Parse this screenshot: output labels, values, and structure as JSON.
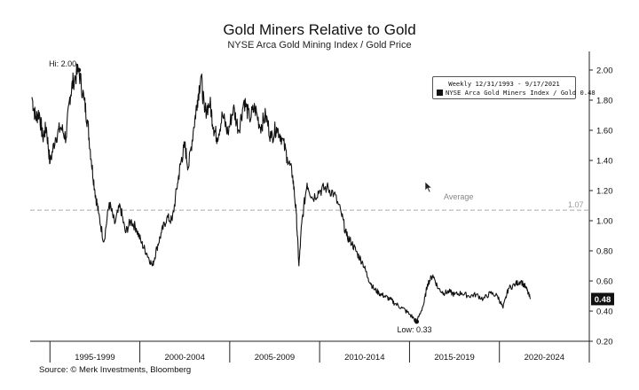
{
  "header": {
    "title": "Gold Miners Relative to Gold",
    "subtitle": "NYSE Arca Gold Mining Index / Gold Price"
  },
  "footer": {
    "source": "Source: © Merk Investments, Bloomberg"
  },
  "legend": {
    "range": "Weekly 12/31/1993 - 9/17/2021",
    "series": "NYSE Arca Gold Miners Index / Gold 0.48"
  },
  "annotations": {
    "high": "Hi: 2.00",
    "low": "Low: 0.33",
    "average_label": "Average",
    "average_value": "1.07",
    "last_value": "0.48"
  },
  "chart_data": {
    "type": "line",
    "title": "Gold Miners Relative to Gold",
    "subtitle": "NYSE Arca Gold Mining Index / Gold Price",
    "xlabel": "",
    "ylabel": "",
    "x_range": [
      1993.9,
      2025.0
    ],
    "ylim": [
      0.2,
      2.1
    ],
    "y_ticks": [
      "0.20",
      "0.40",
      "0.60",
      "0.80",
      "1.00",
      "1.20",
      "1.40",
      "1.60",
      "1.80",
      "2.00"
    ],
    "x_period_labels": [
      "1995-1999",
      "2000-2004",
      "2005-2009",
      "2010-2014",
      "2015-2019",
      "2020-2024"
    ],
    "x_period_bounds": [
      1995,
      2000,
      2005,
      2010,
      2015,
      2020,
      2025
    ],
    "average": 1.07,
    "grid": false,
    "legend_position": "top-right",
    "series": [
      {
        "name": "NYSE Arca Gold Miners Index / Gold",
        "color": "#111111",
        "x": [
          1994.0,
          1994.2,
          1994.4,
          1994.6,
          1994.8,
          1995.0,
          1995.3,
          1995.6,
          1995.9,
          1996.1,
          1996.3,
          1996.6,
          1996.9,
          1997.1,
          1997.3,
          1997.5,
          1997.7,
          1998.0,
          1998.3,
          1998.6,
          1998.9,
          1999.2,
          1999.5,
          1999.8,
          2000.1,
          2000.4,
          2000.7,
          2000.95,
          2001.2,
          2001.5,
          2001.8,
          2002.1,
          2002.3,
          2002.5,
          2002.7,
          2003.0,
          2003.2,
          2003.4,
          2003.6,
          2003.9,
          2004.1,
          2004.3,
          2004.6,
          2004.9,
          2005.2,
          2005.5,
          2005.8,
          2006.1,
          2006.4,
          2006.7,
          2007.0,
          2007.3,
          2007.6,
          2007.9,
          2008.2,
          2008.5,
          2008.7,
          2008.85,
          2009.0,
          2009.3,
          2009.6,
          2010.0,
          2010.4,
          2010.8,
          2011.2,
          2011.5,
          2011.8,
          2012.1,
          2012.4,
          2012.7,
          2013.0,
          2013.3,
          2013.6,
          2013.9,
          2014.2,
          2014.6,
          2015.0,
          2015.4,
          2015.8,
          2016.0,
          2016.3,
          2016.6,
          2016.9,
          2017.2,
          2017.5,
          2017.9,
          2018.3,
          2018.7,
          2019.1,
          2019.5,
          2019.9,
          2020.2,
          2020.5,
          2020.9,
          2021.2,
          2021.5,
          2021.72
        ],
        "y": [
          1.82,
          1.68,
          1.72,
          1.55,
          1.62,
          1.38,
          1.55,
          1.62,
          1.55,
          1.82,
          1.93,
          2.0,
          1.8,
          1.65,
          1.4,
          1.2,
          1.05,
          0.86,
          1.12,
          0.98,
          1.1,
          0.92,
          1.0,
          0.95,
          0.85,
          0.78,
          0.7,
          0.82,
          0.92,
          1.02,
          1.0,
          1.25,
          1.4,
          1.5,
          1.35,
          1.62,
          1.8,
          1.96,
          1.72,
          1.78,
          1.62,
          1.55,
          1.7,
          1.58,
          1.75,
          1.6,
          1.8,
          1.68,
          1.75,
          1.62,
          1.7,
          1.55,
          1.62,
          1.55,
          1.42,
          1.3,
          1.05,
          0.7,
          0.98,
          1.25,
          1.15,
          1.2,
          1.22,
          1.18,
          1.05,
          0.9,
          0.85,
          0.78,
          0.72,
          0.62,
          0.55,
          0.52,
          0.5,
          0.48,
          0.45,
          0.42,
          0.38,
          0.33,
          0.45,
          0.58,
          0.64,
          0.55,
          0.52,
          0.53,
          0.51,
          0.52,
          0.5,
          0.51,
          0.48,
          0.52,
          0.5,
          0.42,
          0.55,
          0.58,
          0.6,
          0.55,
          0.48
        ]
      }
    ]
  }
}
